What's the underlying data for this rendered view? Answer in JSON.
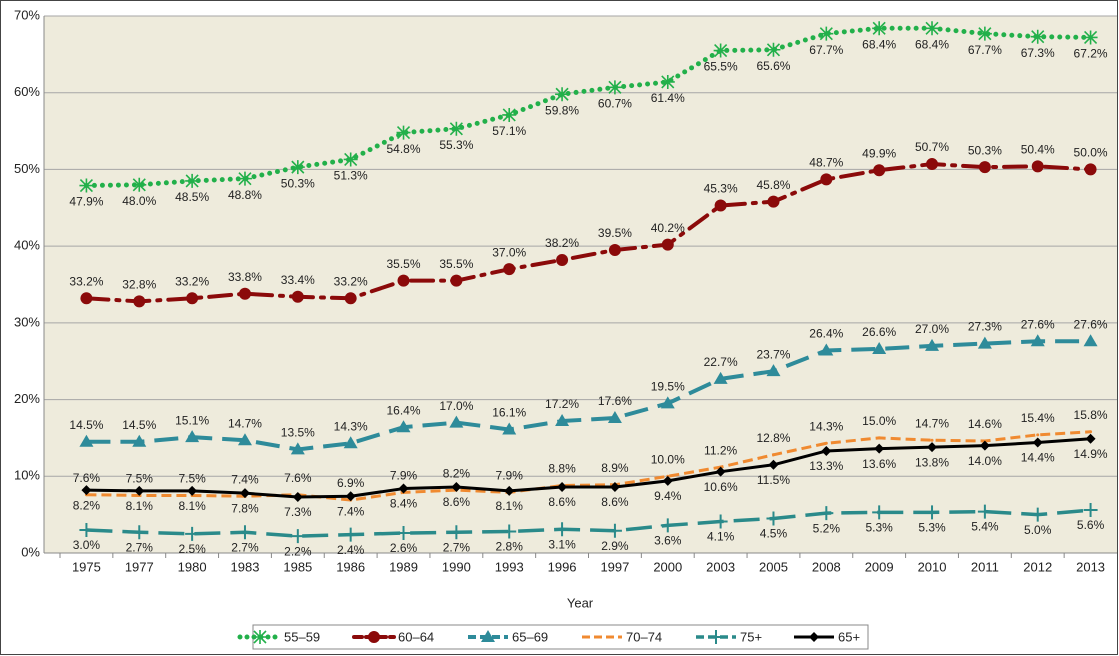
{
  "chart_data": {
    "type": "line",
    "x_label": "Year",
    "categories": [
      "1975",
      "1977",
      "1980",
      "1983",
      "1985",
      "1986",
      "1989",
      "1990",
      "1993",
      "1996",
      "1997",
      "2000",
      "2003",
      "2005",
      "2008",
      "2009",
      "2010",
      "2011",
      "2012",
      "2013"
    ],
    "ylim": [
      0,
      70
    ],
    "yticks": [
      {
        "value": 0,
        "label": "0%"
      },
      {
        "value": 10,
        "label": "10%"
      },
      {
        "value": 20,
        "label": "20%"
      },
      {
        "value": 30,
        "label": "30%"
      },
      {
        "value": 40,
        "label": "40%"
      },
      {
        "value": 50,
        "label": "50%"
      },
      {
        "value": 60,
        "label": "60%"
      },
      {
        "value": 70,
        "label": "70%"
      }
    ],
    "grid": true,
    "legend": "bottom",
    "series": [
      {
        "name": "55–59",
        "color": "#22b04a",
        "values": [
          47.9,
          48.0,
          48.5,
          48.8,
          50.3,
          51.3,
          54.8,
          55.3,
          57.1,
          59.8,
          60.7,
          61.4,
          65.5,
          65.6,
          67.7,
          68.4,
          68.4,
          67.7,
          67.3,
          67.2
        ],
        "value_labels": [
          "47.9%",
          "48.0%",
          "48.5%",
          "48.8%",
          "50.3%",
          "51.3%",
          "54.8%",
          "55.3%",
          "57.1%",
          "59.8%",
          "60.7%",
          "61.4%",
          "65.5%",
          "65.6%",
          "67.7%",
          "68.4%",
          "68.4%",
          "67.7%",
          "67.3%",
          "67.2%"
        ]
      },
      {
        "name": "60–64",
        "color": "#8b0a0a",
        "values": [
          33.2,
          32.8,
          33.2,
          33.8,
          33.4,
          33.2,
          35.5,
          35.5,
          37.0,
          38.2,
          39.5,
          40.2,
          45.3,
          45.8,
          48.7,
          49.9,
          50.7,
          50.3,
          50.4,
          50.0
        ],
        "value_labels": [
          "33.2%",
          "32.8%",
          "33.2%",
          "33.8%",
          "33.4%",
          "33.2%",
          "35.5%",
          "35.5%",
          "37.0%",
          "38.2%",
          "39.5%",
          "40.2%",
          "45.3%",
          "45.8%",
          "48.7%",
          "49.9%",
          "50.7%",
          "50.3%",
          "50.4%",
          "50.0%"
        ]
      },
      {
        "name": "65–69",
        "color": "#2e8b9a",
        "values": [
          14.5,
          14.5,
          15.1,
          14.7,
          13.5,
          14.3,
          16.4,
          17.0,
          16.1,
          17.2,
          17.6,
          19.5,
          22.7,
          23.7,
          26.4,
          26.6,
          27.0,
          27.3,
          27.6,
          27.6
        ],
        "value_labels": [
          "14.5%",
          "14.5%",
          "15.1%",
          "14.7%",
          "13.5%",
          "14.3%",
          "16.4%",
          "17.0%",
          "16.1%",
          "17.2%",
          "17.6%",
          "19.5%",
          "22.7%",
          "23.7%",
          "26.4%",
          "26.6%",
          "27.0%",
          "27.3%",
          "27.6%",
          "27.6%"
        ]
      },
      {
        "name": "70–74",
        "color": "#f08a30",
        "values": [
          7.6,
          7.5,
          7.5,
          7.4,
          7.6,
          6.9,
          7.9,
          8.2,
          7.9,
          8.8,
          8.9,
          10.0,
          11.2,
          12.8,
          14.3,
          15.0,
          14.7,
          14.6,
          15.4,
          15.8
        ],
        "value_labels": [
          "7.6%",
          "7.5%",
          "7.5%",
          "7.4%",
          "7.6%",
          "6.9%",
          "7.9%",
          "8.2%",
          "7.9%",
          "8.8%",
          "8.9%",
          "10.0%",
          "11.2%",
          "12.8%",
          "14.3%",
          "15.0%",
          "14.7%",
          "14.6%",
          "15.4%",
          "15.8%"
        ]
      },
      {
        "name": "75+",
        "color": "#2a8a8a",
        "values": [
          3.0,
          2.7,
          2.5,
          2.7,
          2.2,
          2.4,
          2.6,
          2.7,
          2.8,
          3.1,
          2.9,
          3.6,
          4.1,
          4.5,
          5.2,
          5.3,
          5.3,
          5.4,
          5.0,
          5.6
        ],
        "value_labels": [
          "3.0%",
          "2.7%",
          "2.5%",
          "2.7%",
          "2.2%",
          "2.4%",
          "2.6%",
          "2.7%",
          "2.8%",
          "3.1%",
          "2.9%",
          "3.6%",
          "4.1%",
          "4.5%",
          "5.2%",
          "5.3%",
          "5.3%",
          "5.4%",
          "5.0%",
          "5.6%"
        ]
      },
      {
        "name": "65+",
        "color": "#000000",
        "values": [
          8.2,
          8.1,
          8.1,
          7.8,
          7.3,
          7.4,
          8.4,
          8.6,
          8.1,
          8.6,
          8.6,
          9.4,
          10.6,
          11.5,
          13.3,
          13.6,
          13.8,
          14.0,
          14.4,
          14.9
        ],
        "value_labels": [
          "8.2%",
          "8.1%",
          "8.1%",
          "7.8%",
          "7.3%",
          "7.4%",
          "8.4%",
          "8.6%",
          "8.1%",
          "8.6%",
          "8.6%",
          "9.4%",
          "10.6%",
          "11.5%",
          "13.3%",
          "13.6%",
          "13.8%",
          "14.0%",
          "14.4%",
          "14.9%"
        ]
      }
    ]
  }
}
